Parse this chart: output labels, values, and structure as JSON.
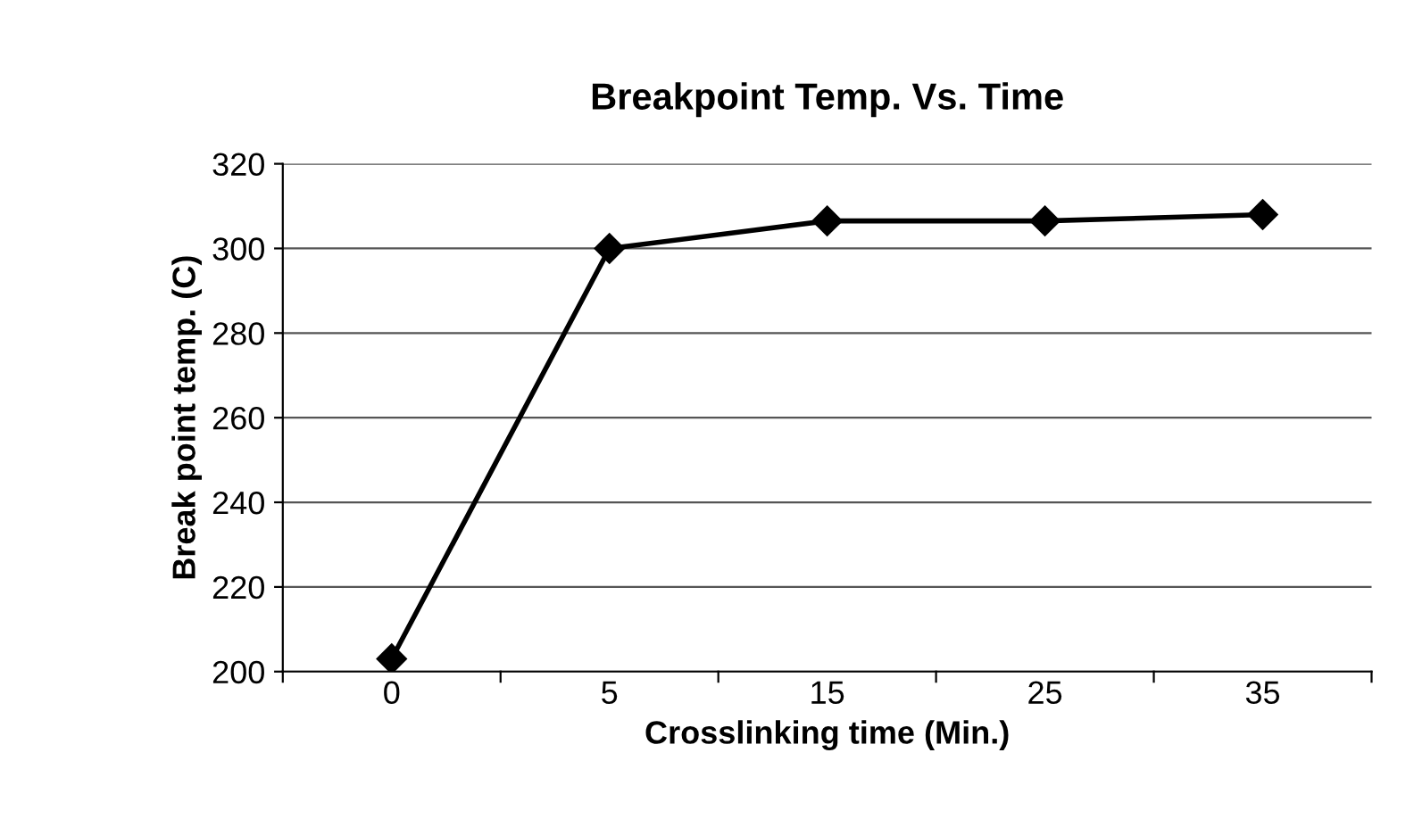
{
  "chart_data": {
    "type": "line",
    "title": "Breakpoint Temp. Vs. Time",
    "xlabel": "Crosslinking time (Min.)",
    "ylabel": "Break point temp. (C)",
    "categories": [
      "0",
      "5",
      "15",
      "25",
      "35"
    ],
    "series": [
      {
        "color": "#000000",
        "values": [
          203,
          300,
          306.5,
          306.5,
          308
        ]
      }
    ],
    "ylim": [
      200,
      320
    ],
    "yticks": [
      200,
      220,
      240,
      260,
      280,
      300,
      320
    ],
    "grid": "y",
    "marker": "diamond",
    "line_style": "solid",
    "legend": false
  }
}
